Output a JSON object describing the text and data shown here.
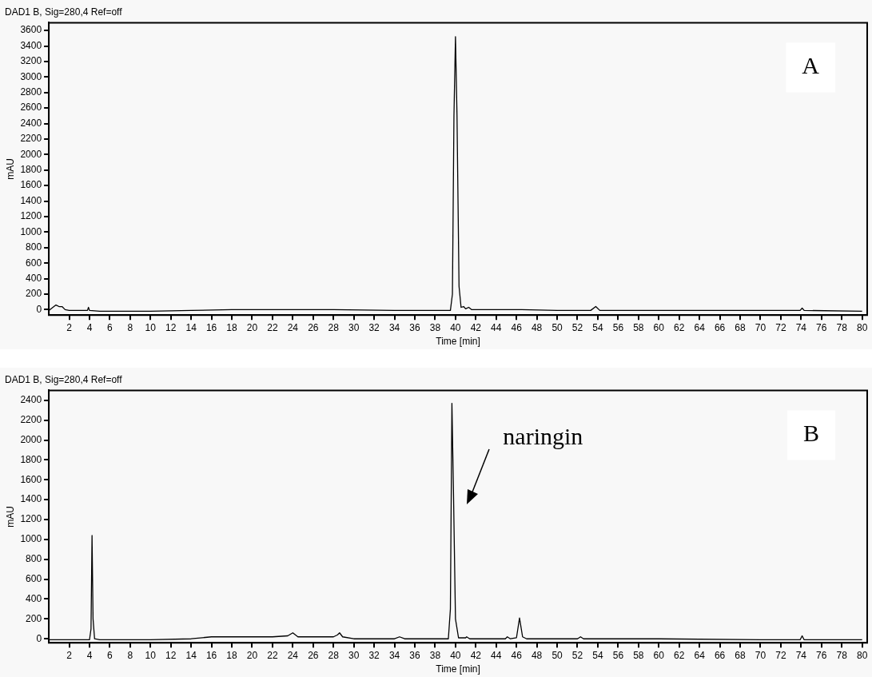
{
  "chart_data": [
    {
      "type": "line",
      "title": "DAD1 B, Sig=280,4 Ref=off",
      "xlabel": "Time [min]",
      "ylabel": "mAU",
      "annotations": [
        "A"
      ],
      "xlim": [
        0,
        80.5
      ],
      "xticks": [
        2,
        4,
        6,
        8,
        10,
        12,
        14,
        16,
        18,
        20,
        22,
        24,
        26,
        28,
        30,
        32,
        34,
        36,
        38,
        40,
        42,
        44,
        46,
        48,
        50,
        52,
        54,
        56,
        58,
        60,
        62,
        64,
        66,
        68,
        70,
        72,
        74,
        76,
        78,
        80
      ],
      "ylim": [
        -70,
        3700
      ],
      "yticks": [
        0,
        200,
        400,
        600,
        800,
        1000,
        1200,
        1400,
        1600,
        1800,
        2000,
        2200,
        2400,
        2600,
        2800,
        3000,
        3200,
        3400,
        3600
      ],
      "series": [
        {
          "color": "#000000",
          "x": [
            0,
            0.3,
            0.7,
            1.0,
            1.3,
            1.6,
            2,
            3.8,
            3.9,
            4.0,
            5,
            10,
            14,
            18,
            19,
            24,
            28,
            34,
            38,
            39.5,
            39.7,
            39.85,
            40.0,
            40.15,
            40.35,
            40.55,
            40.8,
            41.0,
            41.3,
            41.6,
            43,
            46.5,
            50,
            53.3,
            53.8,
            54.2,
            60,
            70,
            73.9,
            74.1,
            74.3,
            80
          ],
          "values": [
            -10,
            20,
            60,
            40,
            40,
            0,
            -10,
            -10,
            30,
            -10,
            -20,
            -20,
            -10,
            0,
            0,
            0,
            0,
            -10,
            -10,
            -10,
            200,
            2500,
            3520,
            2500,
            300,
            30,
            40,
            10,
            30,
            0,
            0,
            0,
            -10,
            -10,
            40,
            -10,
            -10,
            -10,
            -10,
            20,
            -10,
            -20
          ]
        }
      ]
    },
    {
      "type": "line",
      "title": "DAD1 B, Sig=280,4 Ref=off",
      "xlabel": "Time [min]",
      "ylabel": "mAU",
      "annotations": [
        "B",
        "naringin"
      ],
      "xlim": [
        0,
        80.5
      ],
      "xticks": [
        2,
        4,
        6,
        8,
        10,
        12,
        14,
        16,
        18,
        20,
        22,
        24,
        26,
        28,
        30,
        32,
        34,
        36,
        38,
        40,
        42,
        44,
        46,
        48,
        50,
        52,
        54,
        56,
        58,
        60,
        62,
        64,
        66,
        68,
        70,
        72,
        74,
        76,
        78,
        80
      ],
      "ylim": [
        -40,
        2500
      ],
      "yticks": [
        0,
        200,
        400,
        600,
        800,
        1000,
        1200,
        1400,
        1600,
        1800,
        2000,
        2200,
        2400
      ],
      "series": [
        {
          "color": "#000000",
          "x": [
            0,
            4,
            4.15,
            4.25,
            4.35,
            4.5,
            5,
            6,
            10,
            14,
            16,
            18,
            22,
            23.5,
            24.0,
            24.5,
            25,
            26,
            28,
            28.4,
            28.6,
            28.9,
            30,
            34,
            34.5,
            35,
            39.3,
            39.5,
            39.65,
            39.8,
            40.0,
            40.3,
            41,
            41.1,
            41.4,
            44,
            44.9,
            45.1,
            45.4,
            46.0,
            46.3,
            46.6,
            47,
            52,
            52.3,
            52.6,
            60,
            70,
            73.9,
            74.1,
            74.3,
            80
          ],
          "values": [
            -10,
            -10,
            100,
            1040,
            200,
            0,
            -10,
            -10,
            -10,
            0,
            20,
            20,
            20,
            30,
            60,
            20,
            20,
            20,
            20,
            40,
            60,
            20,
            0,
            0,
            20,
            0,
            0,
            300,
            2370,
            1500,
            200,
            10,
            10,
            20,
            0,
            0,
            0,
            20,
            0,
            10,
            210,
            20,
            0,
            0,
            20,
            0,
            0,
            -10,
            -10,
            30,
            -10,
            -10
          ]
        }
      ]
    }
  ]
}
